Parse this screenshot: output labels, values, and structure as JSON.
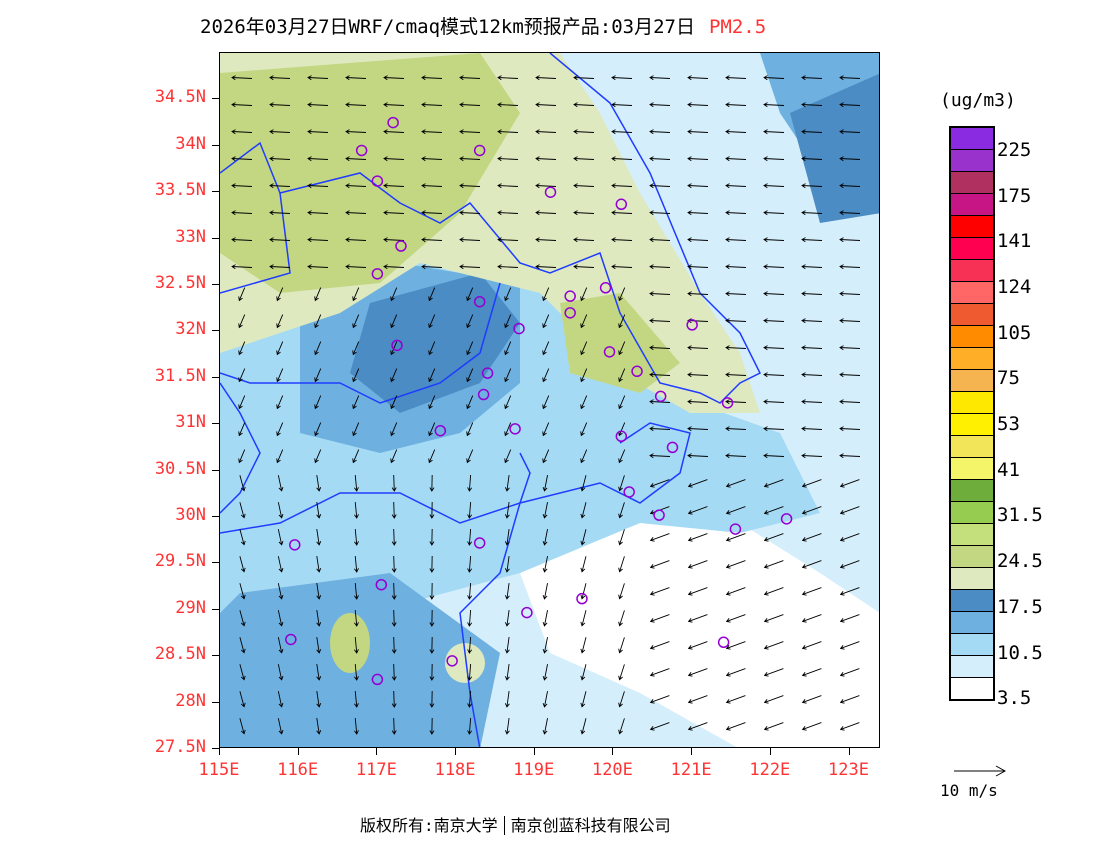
{
  "title": {
    "main": "2026年03月27日WRF/cmaq模式12km预报产品:03月27日",
    "pollutant": "PM2.5"
  },
  "axes": {
    "lat_labels": [
      "34.5N",
      "34N",
      "33.5N",
      "33N",
      "32.5N",
      "32N",
      "31.5N",
      "31N",
      "30.5N",
      "30N",
      "29.5N",
      "29N",
      "28.5N",
      "28N",
      "27.5N"
    ],
    "lat_values": [
      34.5,
      34,
      33.5,
      33,
      32.5,
      32,
      31.5,
      31,
      30.5,
      30,
      29.5,
      29,
      28.5,
      28,
      27.5
    ],
    "lon_labels": [
      "115E",
      "116E",
      "117E",
      "118E",
      "119E",
      "120E",
      "121E",
      "122E",
      "123E"
    ],
    "lon_values": [
      115,
      116,
      117,
      118,
      119,
      120,
      121,
      122,
      123
    ],
    "lon_range": [
      115,
      123.4
    ],
    "lat_range": [
      27.5,
      35.0
    ]
  },
  "colorbar": {
    "unit": "(ug/m3)",
    "colors": [
      "#8a2be2",
      "#9932cc",
      "#b03060",
      "#c71585",
      "#ff0000",
      "#ff0050",
      "#f73055",
      "#ff6666",
      "#ef5a30",
      "#ff8c00",
      "#ffae28",
      "#f5b450",
      "#ffe800",
      "#ffef00",
      "#f3e55a",
      "#f5f56a",
      "#6ead3c",
      "#96cd50",
      "#c3e07d",
      "#c3d782",
      "#dee9c0",
      "#4a8cc3",
      "#6eb0e0",
      "#a5daf5",
      "#d5eefb",
      "#ffffff"
    ],
    "labels": [
      "225",
      "175",
      "141",
      "124",
      "105",
      "75",
      "53",
      "41",
      "31.5",
      "24.5",
      "17.5",
      "10.5",
      "3.5"
    ]
  },
  "wind_reference": "10 m/s",
  "footer": {
    "left": "版权所有:南京大学",
    "right": "南京创蓝科技有限公司"
  }
}
